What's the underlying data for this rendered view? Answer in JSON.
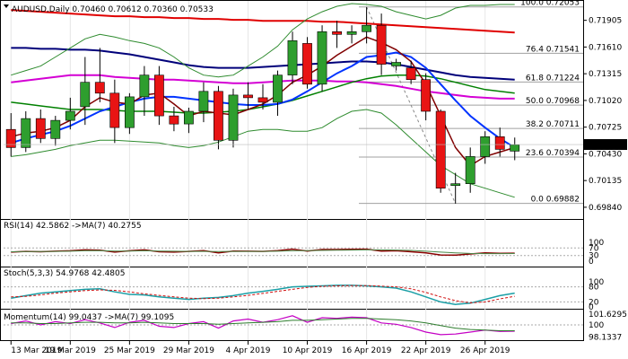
{
  "chart_data": {
    "type": "candlestick",
    "symbol_line": "AUDUSD,Daily  0.70460 0.70612 0.70360 0.70533",
    "colors": {
      "bull_fill": "#2e9e2e",
      "bear_fill": "#e81414",
      "wick": "#000000",
      "ma_red": "#e00000",
      "ma_magenta": "#d400d4",
      "ma_navy": "#00007a",
      "ma_blue": "#0033ff",
      "ma_dark_red": "#800000",
      "ma_green": "#008000",
      "bollinger": "#2e8b2e",
      "fib_line": "#a0a0a0",
      "grid": "#e6e6e6",
      "current_price_bg": "#000000",
      "current_price_text": "#ffffff"
    },
    "price_axis": {
      "ylim": [
        0.6975,
        0.7208
      ],
      "ticks": [
        "0.71905",
        "0.71610",
        "0.71315",
        "0.71020",
        "0.70725",
        "0.70430",
        "0.70135",
        "0.69840"
      ],
      "tick_values": [
        0.71905,
        0.7161,
        0.71315,
        0.7102,
        0.70725,
        0.7043,
        0.70135,
        0.6984
      ],
      "current_price": "0.70533",
      "current_value": 0.70533
    },
    "fib_levels": [
      {
        "label": "100.0 0.72053",
        "value": 0.72053
      },
      {
        "label": "76.4 0.71541",
        "value": 0.71541
      },
      {
        "label": "61.8 0.71224",
        "value": 0.71224
      },
      {
        "label": "50.0 0.70968",
        "value": 0.70968
      },
      {
        "label": "38.2 0.70711",
        "value": 0.70711
      },
      {
        "label": "23.6 0.70394",
        "value": 0.70394
      },
      {
        "label": "0.0 0.69882",
        "value": 0.69882
      }
    ],
    "x_labels": [
      {
        "label": "13 Mar 2019",
        "index": 0
      },
      {
        "label": "19 Mar 2019",
        "index": 4
      },
      {
        "label": "25 Mar 2019",
        "index": 8
      },
      {
        "label": "29 Mar 2019",
        "index": 12
      },
      {
        "label": "4 Apr 2019",
        "index": 16
      },
      {
        "label": "10 Apr 2019",
        "index": 20
      },
      {
        "label": "16 Apr 2019",
        "index": 24
      },
      {
        "label": "22 Apr 2019",
        "index": 28
      },
      {
        "label": "26 Apr 2019",
        "index": 32
      }
    ],
    "candles": [
      {
        "o": 0.707,
        "h": 0.7088,
        "l": 0.704,
        "c": 0.705
      },
      {
        "o": 0.705,
        "h": 0.709,
        "l": 0.7045,
        "c": 0.7082
      },
      {
        "o": 0.7082,
        "h": 0.7092,
        "l": 0.7055,
        "c": 0.706
      },
      {
        "o": 0.706,
        "h": 0.7085,
        "l": 0.7052,
        "c": 0.708
      },
      {
        "o": 0.708,
        "h": 0.7105,
        "l": 0.707,
        "c": 0.709
      },
      {
        "o": 0.7095,
        "h": 0.715,
        "l": 0.7075,
        "c": 0.7122
      },
      {
        "o": 0.7122,
        "h": 0.716,
        "l": 0.71,
        "c": 0.711
      },
      {
        "o": 0.711,
        "h": 0.7125,
        "l": 0.7055,
        "c": 0.7072
      },
      {
        "o": 0.7072,
        "h": 0.711,
        "l": 0.7065,
        "c": 0.7106
      },
      {
        "o": 0.7106,
        "h": 0.714,
        "l": 0.7085,
        "c": 0.713
      },
      {
        "o": 0.713,
        "h": 0.714,
        "l": 0.7075,
        "c": 0.7085
      },
      {
        "o": 0.7085,
        "h": 0.7095,
        "l": 0.7068,
        "c": 0.7076
      },
      {
        "o": 0.7076,
        "h": 0.7094,
        "l": 0.7066,
        "c": 0.709
      },
      {
        "o": 0.709,
        "h": 0.7122,
        "l": 0.7078,
        "c": 0.7112
      },
      {
        "o": 0.7112,
        "h": 0.7118,
        "l": 0.7048,
        "c": 0.7058
      },
      {
        "o": 0.7058,
        "h": 0.7115,
        "l": 0.705,
        "c": 0.7108
      },
      {
        "o": 0.7108,
        "h": 0.7122,
        "l": 0.7092,
        "c": 0.7105
      },
      {
        "o": 0.7105,
        "h": 0.712,
        "l": 0.7092,
        "c": 0.71
      },
      {
        "o": 0.71,
        "h": 0.7135,
        "l": 0.7085,
        "c": 0.713
      },
      {
        "o": 0.713,
        "h": 0.7178,
        "l": 0.712,
        "c": 0.7168
      },
      {
        "o": 0.7165,
        "h": 0.7172,
        "l": 0.7115,
        "c": 0.712
      },
      {
        "o": 0.712,
        "h": 0.7185,
        "l": 0.7112,
        "c": 0.7178
      },
      {
        "o": 0.7178,
        "h": 0.719,
        "l": 0.716,
        "c": 0.7175
      },
      {
        "o": 0.7175,
        "h": 0.7185,
        "l": 0.7165,
        "c": 0.7178
      },
      {
        "o": 0.7178,
        "h": 0.7205,
        "l": 0.7165,
        "c": 0.7185
      },
      {
        "o": 0.7185,
        "h": 0.7198,
        "l": 0.713,
        "c": 0.7142
      },
      {
        "o": 0.714,
        "h": 0.7148,
        "l": 0.7135,
        "c": 0.7144
      },
      {
        "o": 0.7138,
        "h": 0.7146,
        "l": 0.712,
        "c": 0.7125
      },
      {
        "o": 0.7125,
        "h": 0.7132,
        "l": 0.708,
        "c": 0.709
      },
      {
        "o": 0.709,
        "h": 0.7092,
        "l": 0.7,
        "c": 0.7005
      },
      {
        "o": 0.7008,
        "h": 0.7022,
        "l": 0.6988,
        "c": 0.701
      },
      {
        "o": 0.701,
        "h": 0.705,
        "l": 0.7,
        "c": 0.704
      },
      {
        "o": 0.704,
        "h": 0.7068,
        "l": 0.7032,
        "c": 0.7062
      },
      {
        "o": 0.7062,
        "h": 0.7072,
        "l": 0.704,
        "c": 0.7048
      },
      {
        "o": 0.7046,
        "h": 0.7061,
        "l": 0.7036,
        "c": 0.7053
      }
    ],
    "series": [
      {
        "key": "ma_red",
        "values": [
          0.7202,
          0.7201,
          0.72,
          0.7199,
          0.7198,
          0.7197,
          0.7196,
          0.7195,
          0.7195,
          0.7194,
          0.7194,
          0.7193,
          0.7193,
          0.7192,
          0.7192,
          0.7191,
          0.7191,
          0.719,
          0.719,
          0.719,
          0.719,
          0.7189,
          0.7189,
          0.7188,
          0.7187,
          0.7186,
          0.7185,
          0.7184,
          0.7183,
          0.7182,
          0.7181,
          0.718,
          0.7179,
          0.7178,
          0.7177
        ]
      },
      {
        "key": "ma_navy",
        "values": [
          0.716,
          0.716,
          0.7159,
          0.7159,
          0.7158,
          0.7158,
          0.7157,
          0.7155,
          0.7153,
          0.715,
          0.7147,
          0.7144,
          0.7141,
          0.7139,
          0.7138,
          0.7138,
          0.7138,
          0.7139,
          0.714,
          0.7141,
          0.7142,
          0.7143,
          0.7144,
          0.7145,
          0.7145,
          0.7144,
          0.7142,
          0.7139,
          0.7136,
          0.7133,
          0.713,
          0.7128,
          0.7127,
          0.7126,
          0.7125
        ]
      },
      {
        "key": "ma_magenta",
        "values": [
          0.7122,
          0.7124,
          0.7126,
          0.7128,
          0.713,
          0.713,
          0.713,
          0.7128,
          0.7127,
          0.7126,
          0.7125,
          0.7125,
          0.7124,
          0.7123,
          0.7122,
          0.7121,
          0.7121,
          0.7122,
          0.7123,
          0.7124,
          0.7124,
          0.7124,
          0.7123,
          0.7123,
          0.7122,
          0.712,
          0.7118,
          0.7115,
          0.7112,
          0.711,
          0.7108,
          0.7106,
          0.7105,
          0.7104,
          0.7104
        ]
      },
      {
        "key": "ma_green",
        "values": [
          0.71,
          0.7098,
          0.7096,
          0.7094,
          0.7092,
          0.7092,
          0.7092,
          0.7091,
          0.709,
          0.709,
          0.709,
          0.7089,
          0.7088,
          0.7088,
          0.7089,
          0.709,
          0.7092,
          0.7095,
          0.7098,
          0.7102,
          0.7107,
          0.7112,
          0.7117,
          0.7122,
          0.7126,
          0.7129,
          0.713,
          0.713,
          0.7129,
          0.7126,
          0.7122,
          0.7118,
          0.7114,
          0.7112,
          0.711
        ]
      },
      {
        "key": "ma_blue",
        "values": [
          0.7055,
          0.706,
          0.7064,
          0.7068,
          0.7074,
          0.7082,
          0.709,
          0.7095,
          0.71,
          0.7104,
          0.7106,
          0.7106,
          0.7104,
          0.7102,
          0.71,
          0.7098,
          0.7097,
          0.7097,
          0.7098,
          0.7103,
          0.7112,
          0.7122,
          0.7132,
          0.714,
          0.715,
          0.7152,
          0.7155,
          0.715,
          0.7138,
          0.712,
          0.7102,
          0.7085,
          0.7072,
          0.706,
          0.705
        ]
      },
      {
        "key": "ma_dark_red",
        "values": [
          0.7062,
          0.7066,
          0.7068,
          0.7072,
          0.708,
          0.7095,
          0.7105,
          0.71,
          0.7098,
          0.7108,
          0.711,
          0.7098,
          0.7085,
          0.709,
          0.7088,
          0.7086,
          0.7092,
          0.7098,
          0.7108,
          0.7122,
          0.713,
          0.714,
          0.7152,
          0.7162,
          0.7172,
          0.7166,
          0.7158,
          0.7145,
          0.712,
          0.7085,
          0.705,
          0.703,
          0.704,
          0.7045,
          0.705
        ]
      },
      {
        "key": "bb_upper",
        "values": [
          0.713,
          0.7135,
          0.714,
          0.715,
          0.716,
          0.717,
          0.7175,
          0.7172,
          0.7168,
          0.7165,
          0.716,
          0.715,
          0.7138,
          0.713,
          0.7128,
          0.713,
          0.714,
          0.715,
          0.7162,
          0.718,
          0.7192,
          0.72,
          0.7206,
          0.7209,
          0.7208,
          0.7206,
          0.72,
          0.7196,
          0.7192,
          0.7196,
          0.7204,
          0.7207,
          0.7207,
          0.7208,
          0.7208
        ]
      },
      {
        "key": "bb_lower",
        "values": [
          0.704,
          0.7042,
          0.7045,
          0.7048,
          0.7052,
          0.7055,
          0.7058,
          0.7058,
          0.7057,
          0.7056,
          0.7055,
          0.7052,
          0.705,
          0.7052,
          0.7056,
          0.7062,
          0.7068,
          0.707,
          0.707,
          0.7068,
          0.7068,
          0.7072,
          0.7082,
          0.709,
          0.7092,
          0.7088,
          0.7075,
          0.706,
          0.7045,
          0.703,
          0.702,
          0.701,
          0.7005,
          0.7,
          0.6995
        ]
      }
    ],
    "rsi": {
      "label": "RSI(14) 42.5862  ->MA(7) 40.2755",
      "ylim": [
        0,
        100
      ],
      "ticks": [
        "100",
        "70",
        "30",
        "0"
      ],
      "tick_values": [
        100,
        70,
        30,
        0
      ],
      "levels": [
        70,
        30
      ],
      "values": [
        48,
        52,
        50,
        53,
        55,
        60,
        58,
        48,
        55,
        60,
        50,
        48,
        52,
        56,
        44,
        54,
        53,
        52,
        56,
        64,
        54,
        62,
        62,
        63,
        64,
        54,
        55,
        50,
        44,
        33,
        32,
        38,
        44,
        42,
        42.5862
      ],
      "ma_values": [
        50,
        51,
        51,
        52,
        53,
        55,
        56,
        54,
        54,
        55,
        54,
        53,
        52,
        52,
        51,
        52,
        52,
        52,
        53,
        55,
        56,
        57,
        58,
        59,
        60,
        60,
        59,
        57,
        53,
        48,
        44,
        41,
        40,
        40,
        40.2755
      ]
    },
    "stoch": {
      "label": "Stoch(5,3,3) 54.9768 42.4805",
      "ylim": [
        0,
        100
      ],
      "ticks": [
        "100",
        "80",
        "20",
        "0"
      ],
      "tick_values": [
        100,
        80,
        20,
        0
      ],
      "levels": [
        80,
        20
      ],
      "k_values": [
        35,
        45,
        55,
        60,
        65,
        70,
        72,
        60,
        50,
        48,
        40,
        35,
        30,
        35,
        38,
        45,
        55,
        62,
        70,
        80,
        82,
        84,
        86,
        86,
        84,
        80,
        75,
        60,
        40,
        20,
        10,
        15,
        30,
        45,
        54.9768
      ],
      "d_values": [
        40,
        42,
        48,
        55,
        60,
        65,
        68,
        66,
        60,
        52,
        46,
        40,
        35,
        33,
        35,
        40,
        46,
        54,
        62,
        70,
        78,
        82,
        84,
        85,
        85,
        83,
        80,
        72,
        58,
        40,
        25,
        16,
        20,
        32,
        42.4805
      ]
    },
    "momentum": {
      "label": "Momentum(14) 99.0437  ->MA(7) 99.1095",
      "ylim": [
        97.8,
        102.2
      ],
      "ticks": [
        "101.6295",
        "100",
        "98.1337"
      ],
      "tick_values": [
        101.6295,
        100,
        98.1337
      ],
      "levels": [
        100
      ],
      "values": [
        100.2,
        100.6,
        100.0,
        100.5,
        100.2,
        100.8,
        100.3,
        99.6,
        100.4,
        100.7,
        99.8,
        99.6,
        100.2,
        100.5,
        99.5,
        100.6,
        100.9,
        100.4,
        100.8,
        101.4,
        100.4,
        101.1,
        101.0,
        101.2,
        101.1,
        100.3,
        100.1,
        99.6,
        98.9,
        98.5,
        98.6,
        98.9,
        99.2,
        99.0,
        99.0437
      ],
      "ma_values": [
        100.3,
        100.3,
        100.2,
        100.2,
        100.3,
        100.4,
        100.4,
        100.3,
        100.3,
        100.4,
        100.3,
        100.2,
        100.2,
        100.2,
        100.1,
        100.2,
        100.3,
        100.4,
        100.5,
        100.7,
        100.7,
        100.8,
        100.9,
        101.0,
        101.0,
        100.9,
        100.8,
        100.6,
        100.3,
        99.9,
        99.5,
        99.3,
        99.2,
        99.1,
        99.1095
      ]
    }
  }
}
